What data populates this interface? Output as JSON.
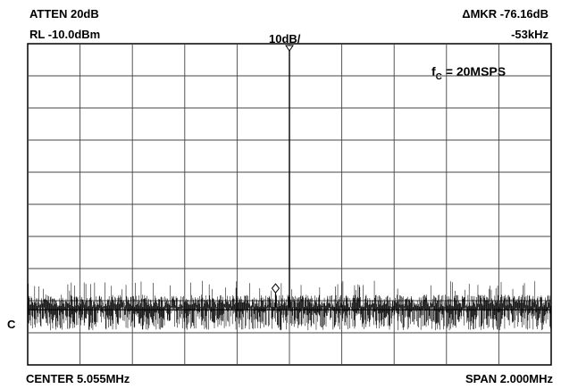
{
  "header": {
    "atten": "ATTEN  20dB",
    "ref_level": "RL  -10.0dBm",
    "scale": "10dB/",
    "marker_label": "ΔMKR  -76.16dB",
    "marker_offset": "-53kHz"
  },
  "footer": {
    "center": "CENTER  5.055MHz",
    "span": "SPAN  2.000MHz"
  },
  "annotation": {
    "fc_prefix": "f",
    "fc_sub": "C",
    "fc_rest": " = 20MSPS",
    "side_marker": "C"
  },
  "chart_data": {
    "type": "line",
    "center_mhz": 5.055,
    "span_mhz": 2.0,
    "ref_level_dbm": -10.0,
    "db_per_div": 10,
    "x_divisions": 10,
    "y_divisions": 10,
    "grid": true,
    "carrier": {
      "freq_mhz": 5.055,
      "level_dbm": -10.0
    },
    "marker": {
      "delta_freq_khz": -53,
      "delta_db": -76.16
    },
    "noise_floor_dbm": -92.0
  }
}
